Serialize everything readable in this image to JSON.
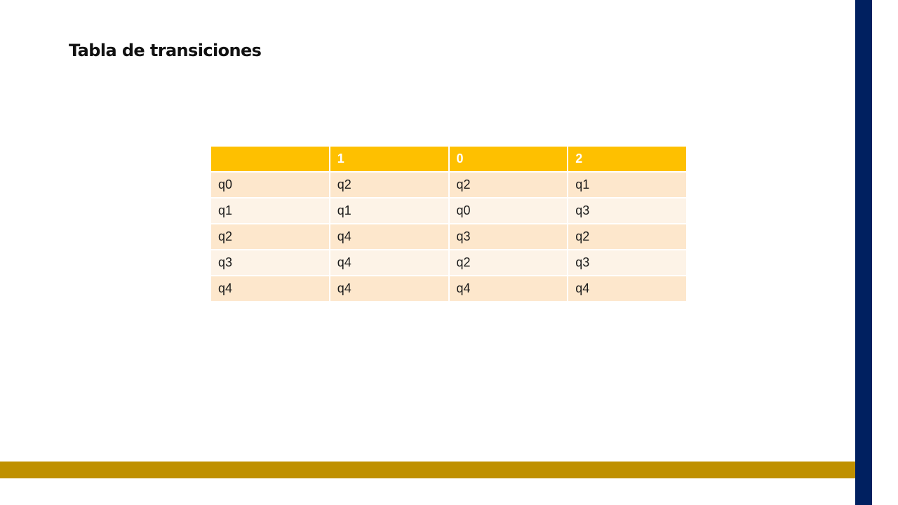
{
  "slide": {
    "title": "Tabla de transiciones"
  },
  "table": {
    "headers": [
      "",
      "1",
      "0",
      "2"
    ],
    "rows": [
      [
        "q0",
        "q2",
        "q2",
        "q1"
      ],
      [
        "q1",
        "q1",
        "q0",
        "q3"
      ],
      [
        "q2",
        "q4",
        "q3",
        "q2"
      ],
      [
        "q3",
        "q4",
        "q2",
        "q3"
      ],
      [
        "q4",
        "q4",
        "q4",
        "q4"
      ]
    ]
  },
  "colors": {
    "header_bg": "#fec000",
    "row_odd_bg": "#fde7cc",
    "row_even_bg": "#fdf3e7",
    "right_bar": "#002060",
    "bottom_bar": "#bf9000"
  }
}
